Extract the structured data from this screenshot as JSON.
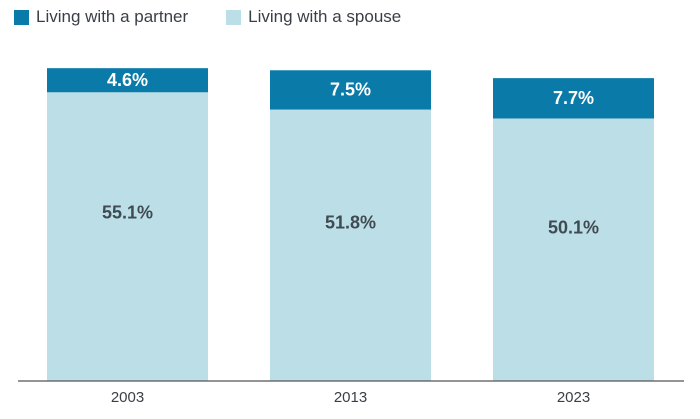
{
  "chart_data": {
    "type": "bar",
    "stacked": true,
    "categories": [
      "2003",
      "2013",
      "2023"
    ],
    "series": [
      {
        "name": "Living with a spouse",
        "values": [
          55.1,
          51.8,
          50.1
        ],
        "labels": [
          "55.1%",
          "51.8%",
          "50.1%"
        ],
        "color": "#bcdee6",
        "label_color": "#3f4a52"
      },
      {
        "name": "Living with a partner",
        "values": [
          4.6,
          7.5,
          7.7
        ],
        "labels": [
          "4.6%",
          "7.5%",
          "7.7%"
        ],
        "color": "#0a7aa8",
        "label_color": "#ffffff"
      }
    ],
    "ylim": [
      0,
      60
    ],
    "grid": false,
    "legend_position": "top-left",
    "axis_color": "#555555"
  },
  "legend": {
    "partner_label": "Living with a partner",
    "spouse_label": "Living with a spouse"
  }
}
